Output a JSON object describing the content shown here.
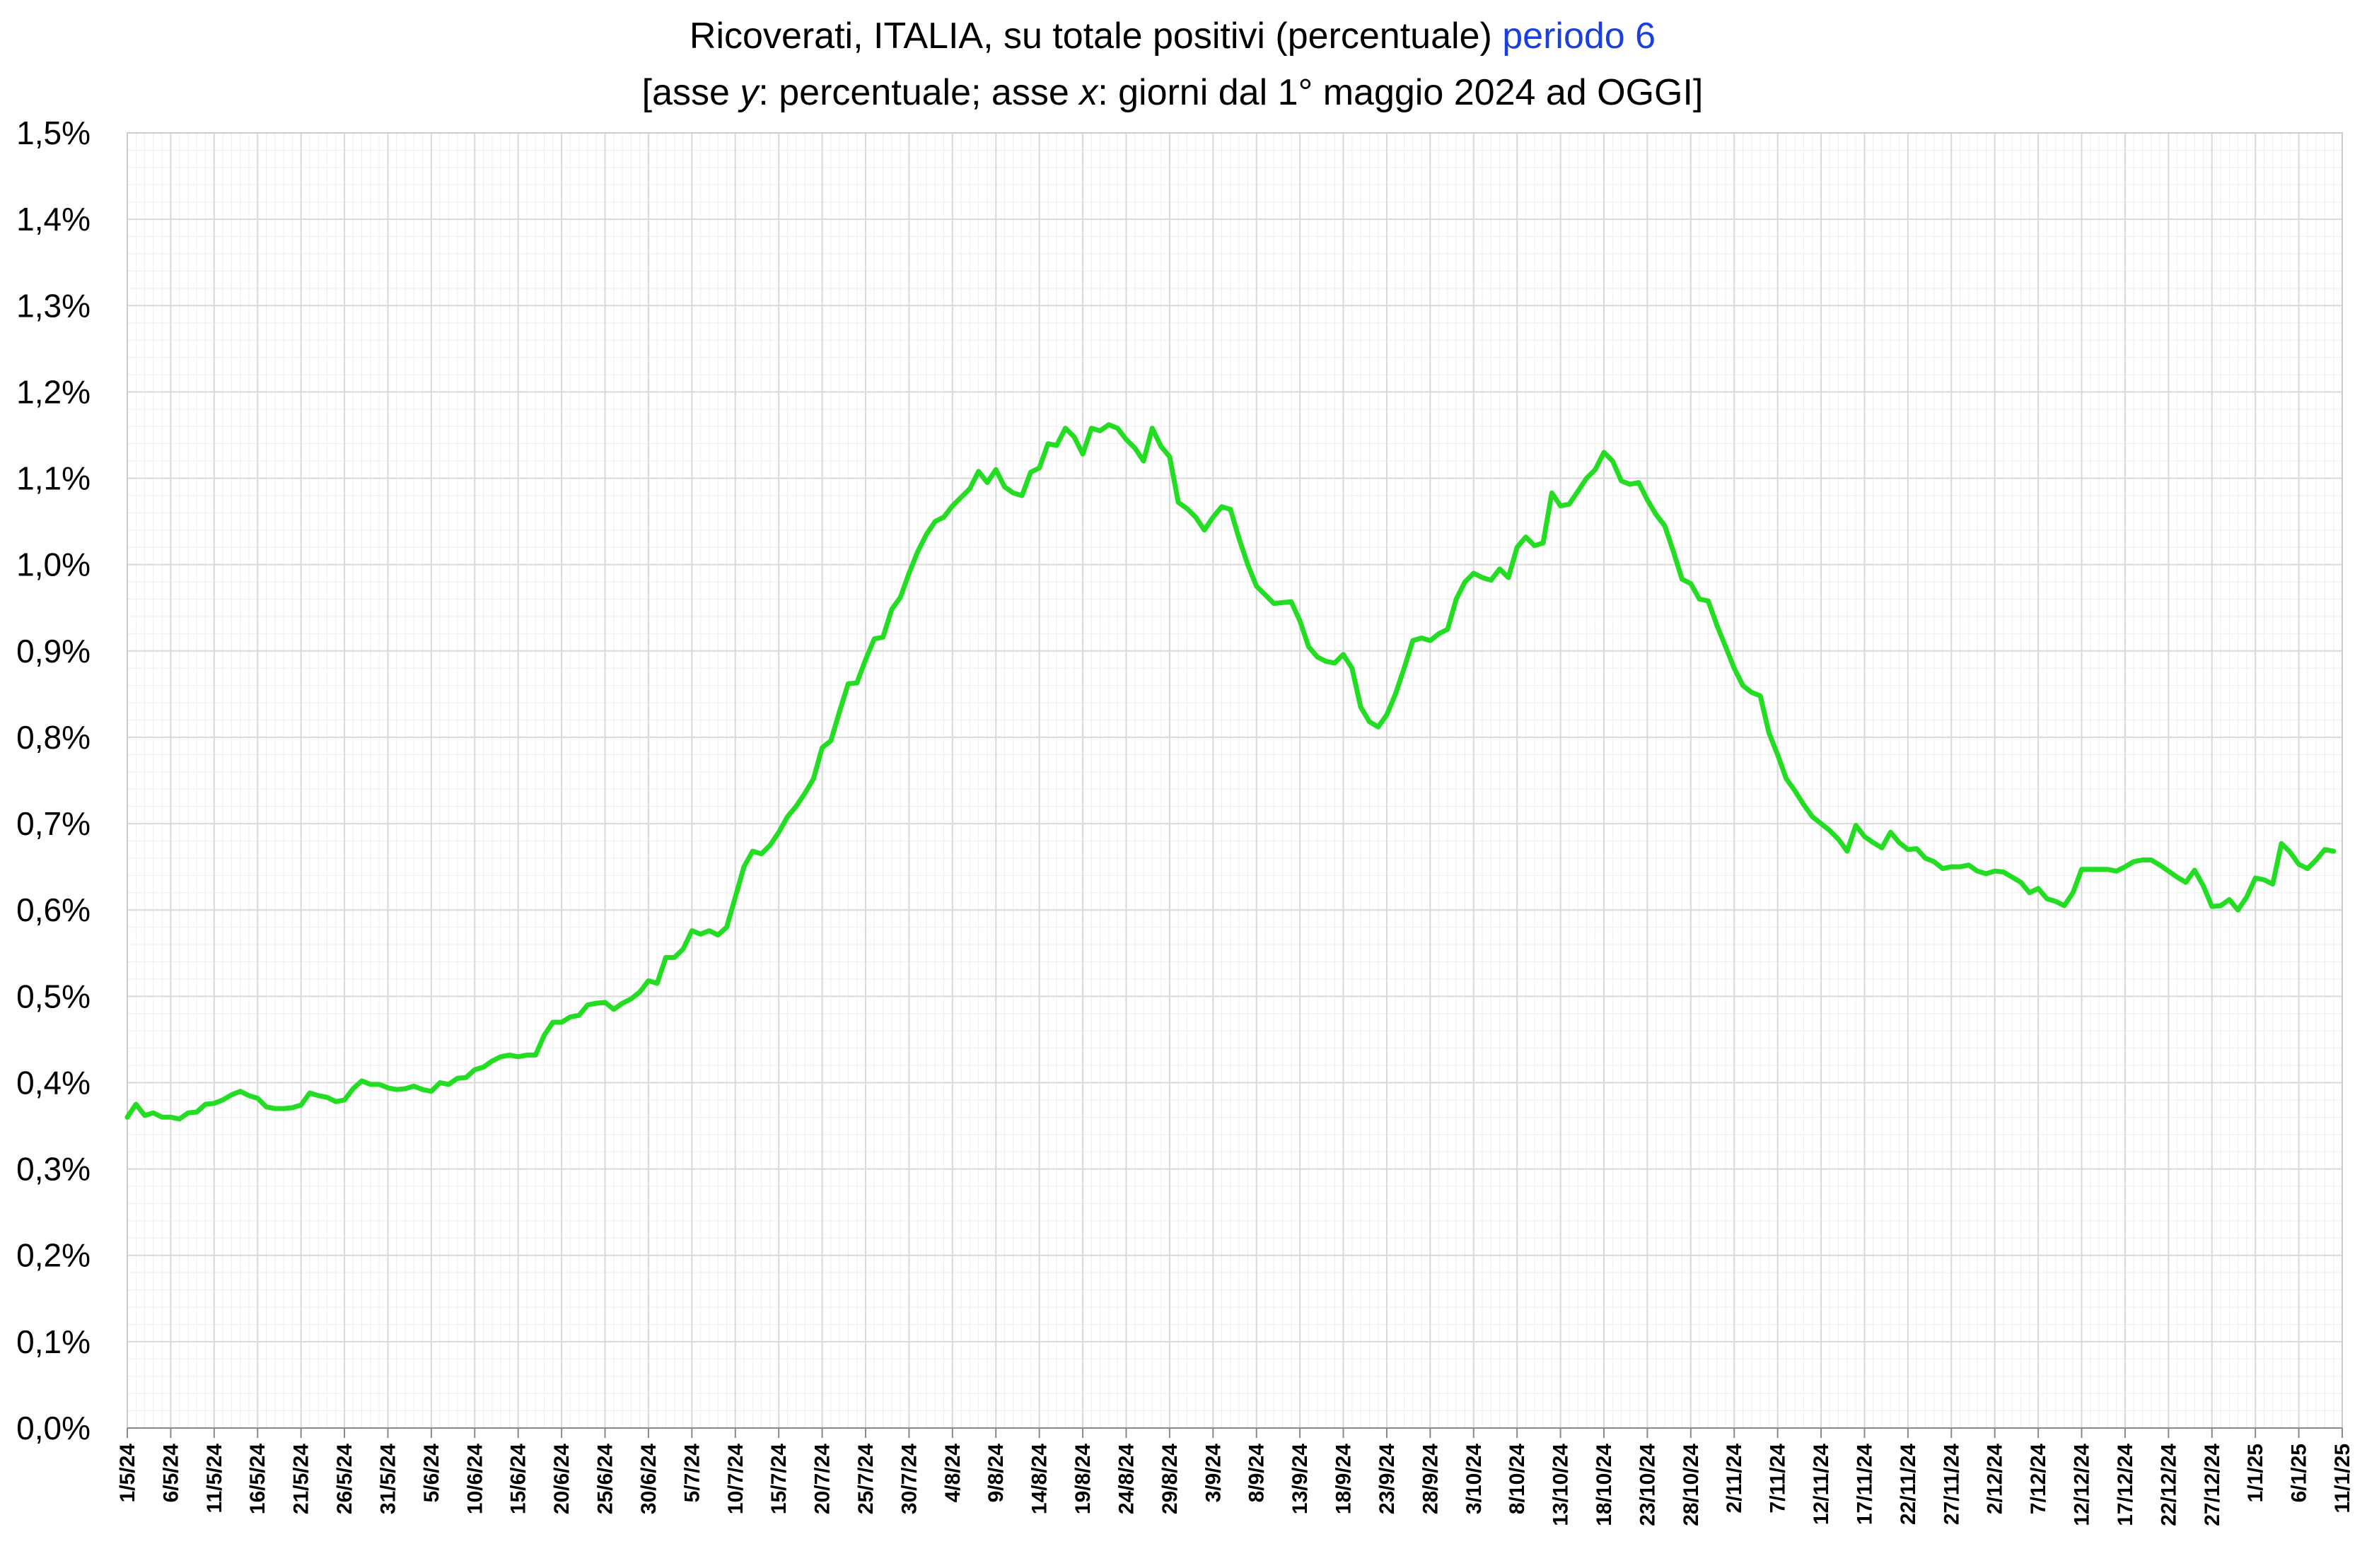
{
  "title": {
    "line1_main": "Ricoverati, ITALIA, su totale positivi (percentuale)",
    "line1_highlight": "periodo 6",
    "line2_open": "[asse ",
    "line2_y": "y",
    "line2_mid": ": percentuale; asse ",
    "line2_x": "x",
    "line2_rest": ": giorni dal 1° maggio 2024 ad OGGI]"
  },
  "colors": {
    "line": "#22dd22",
    "highlight": "#1a3fe0",
    "grid_major": "#d9d9d9",
    "grid_minor": "#eeeeee",
    "axis": "#888888"
  },
  "chart_data": {
    "type": "line",
    "ylim": [
      0,
      1.5
    ],
    "y_ticks": [
      "0,0%",
      "0,1%",
      "0,2%",
      "0,3%",
      "0,4%",
      "0,5%",
      "0,6%",
      "0,7%",
      "0,8%",
      "0,9%",
      "1,0%",
      "1,1%",
      "1,2%",
      "1,3%",
      "1,4%",
      "1,5%"
    ],
    "x_range": [
      "2024-05-01",
      "2025-01-11"
    ],
    "x_ticks": [
      "1/5/24",
      "6/5/24",
      "11/5/24",
      "16/5/24",
      "21/5/24",
      "26/5/24",
      "31/5/24",
      "5/6/24",
      "10/6/24",
      "15/6/24",
      "20/6/24",
      "25/6/24",
      "30/6/24",
      "5/7/24",
      "10/7/24",
      "15/7/24",
      "20/7/24",
      "25/7/24",
      "30/7/24",
      "4/8/24",
      "9/8/24",
      "14/8/24",
      "19/8/24",
      "24/8/24",
      "29/8/24",
      "3/9/24",
      "8/9/24",
      "13/9/24",
      "18/9/24",
      "23/9/24",
      "28/9/24",
      "3/10/24",
      "8/10/24",
      "13/10/24",
      "18/10/24",
      "23/10/24",
      "28/10/24",
      "2/11/24",
      "7/11/24",
      "12/11/24",
      "17/11/24",
      "22/11/24",
      "27/11/24",
      "2/12/24",
      "7/12/24",
      "12/12/24",
      "17/12/24",
      "22/12/24",
      "27/12/24",
      "1/1/25",
      "6/1/25",
      "11/1/25"
    ],
    "grid": true,
    "series": [
      {
        "points": [
          [
            "2024-05-01",
            0.36
          ],
          [
            "2024-05-02",
            0.375
          ],
          [
            "2024-05-03",
            0.362
          ],
          [
            "2024-05-04",
            0.365
          ],
          [
            "2024-05-05",
            0.36
          ],
          [
            "2024-05-06",
            0.36
          ],
          [
            "2024-05-07",
            0.358
          ],
          [
            "2024-05-08",
            0.365
          ],
          [
            "2024-05-09",
            0.366
          ],
          [
            "2024-05-10",
            0.375
          ],
          [
            "2024-05-11",
            0.376
          ],
          [
            "2024-05-12",
            0.38
          ],
          [
            "2024-05-13",
            0.386
          ],
          [
            "2024-05-14",
            0.39
          ],
          [
            "2024-05-15",
            0.385
          ],
          [
            "2024-05-16",
            0.382
          ],
          [
            "2024-05-17",
            0.372
          ],
          [
            "2024-05-18",
            0.37
          ],
          [
            "2024-05-19",
            0.37
          ],
          [
            "2024-05-20",
            0.371
          ],
          [
            "2024-05-21",
            0.374
          ],
          [
            "2024-05-22",
            0.388
          ],
          [
            "2024-05-23",
            0.385
          ],
          [
            "2024-05-24",
            0.383
          ],
          [
            "2024-05-25",
            0.378
          ],
          [
            "2024-05-26",
            0.38
          ],
          [
            "2024-05-27",
            0.393
          ],
          [
            "2024-05-28",
            0.402
          ],
          [
            "2024-05-29",
            0.398
          ],
          [
            "2024-05-30",
            0.398
          ],
          [
            "2024-05-31",
            0.394
          ],
          [
            "2024-06-01",
            0.392
          ],
          [
            "2024-06-02",
            0.393
          ],
          [
            "2024-06-03",
            0.396
          ],
          [
            "2024-06-04",
            0.392
          ],
          [
            "2024-06-05",
            0.39
          ],
          [
            "2024-06-06",
            0.4
          ],
          [
            "2024-06-07",
            0.398
          ],
          [
            "2024-06-08",
            0.405
          ],
          [
            "2024-06-09",
            0.406
          ],
          [
            "2024-06-10",
            0.415
          ],
          [
            "2024-06-11",
            0.418
          ],
          [
            "2024-06-12",
            0.425
          ],
          [
            "2024-06-13",
            0.43
          ],
          [
            "2024-06-14",
            0.432
          ],
          [
            "2024-06-15",
            0.43
          ],
          [
            "2024-06-16",
            0.432
          ],
          [
            "2024-06-17",
            0.432
          ],
          [
            "2024-06-18",
            0.455
          ],
          [
            "2024-06-19",
            0.47
          ],
          [
            "2024-06-20",
            0.47
          ],
          [
            "2024-06-21",
            0.476
          ],
          [
            "2024-06-22",
            0.478
          ],
          [
            "2024-06-23",
            0.49
          ],
          [
            "2024-06-24",
            0.492
          ],
          [
            "2024-06-25",
            0.493
          ],
          [
            "2024-06-26",
            0.485
          ],
          [
            "2024-06-27",
            0.492
          ],
          [
            "2024-06-28",
            0.497
          ],
          [
            "2024-06-29",
            0.505
          ],
          [
            "2024-06-30",
            0.518
          ],
          [
            "2024-07-01",
            0.515
          ],
          [
            "2024-07-02",
            0.545
          ],
          [
            "2024-07-03",
            0.545
          ],
          [
            "2024-07-04",
            0.555
          ],
          [
            "2024-07-05",
            0.576
          ],
          [
            "2024-07-06",
            0.572
          ],
          [
            "2024-07-07",
            0.576
          ],
          [
            "2024-07-08",
            0.571
          ],
          [
            "2024-07-09",
            0.58
          ],
          [
            "2024-07-10",
            0.615
          ],
          [
            "2024-07-11",
            0.65
          ],
          [
            "2024-07-12",
            0.668
          ],
          [
            "2024-07-13",
            0.665
          ],
          [
            "2024-07-14",
            0.675
          ],
          [
            "2024-07-15",
            0.69
          ],
          [
            "2024-07-16",
            0.708
          ],
          [
            "2024-07-17",
            0.72
          ],
          [
            "2024-07-18",
            0.735
          ],
          [
            "2024-07-19",
            0.752
          ],
          [
            "2024-07-20",
            0.788
          ],
          [
            "2024-07-21",
            0.796
          ],
          [
            "2024-07-22",
            0.83
          ],
          [
            "2024-07-23",
            0.862
          ],
          [
            "2024-07-24",
            0.863
          ],
          [
            "2024-07-25",
            0.89
          ],
          [
            "2024-07-26",
            0.914
          ],
          [
            "2024-07-27",
            0.916
          ],
          [
            "2024-07-28",
            0.948
          ],
          [
            "2024-07-29",
            0.962
          ],
          [
            "2024-07-30",
            0.99
          ],
          [
            "2024-07-31",
            1.015
          ],
          [
            "2024-08-01",
            1.035
          ],
          [
            "2024-08-02",
            1.05
          ],
          [
            "2024-08-03",
            1.055
          ],
          [
            "2024-08-04",
            1.068
          ],
          [
            "2024-08-05",
            1.078
          ],
          [
            "2024-08-06",
            1.088
          ],
          [
            "2024-08-07",
            1.108
          ],
          [
            "2024-08-08",
            1.095
          ],
          [
            "2024-08-09",
            1.11
          ],
          [
            "2024-08-10",
            1.09
          ],
          [
            "2024-08-11",
            1.083
          ],
          [
            "2024-08-12",
            1.08
          ],
          [
            "2024-08-13",
            1.107
          ],
          [
            "2024-08-14",
            1.112
          ],
          [
            "2024-08-15",
            1.14
          ],
          [
            "2024-08-16",
            1.138
          ],
          [
            "2024-08-17",
            1.158
          ],
          [
            "2024-08-18",
            1.148
          ],
          [
            "2024-08-19",
            1.128
          ],
          [
            "2024-08-20",
            1.158
          ],
          [
            "2024-08-21",
            1.155
          ],
          [
            "2024-08-22",
            1.162
          ],
          [
            "2024-08-23",
            1.158
          ],
          [
            "2024-08-24",
            1.145
          ],
          [
            "2024-08-25",
            1.135
          ],
          [
            "2024-08-26",
            1.12
          ],
          [
            "2024-08-27",
            1.158
          ],
          [
            "2024-08-28",
            1.137
          ],
          [
            "2024-08-29",
            1.125
          ],
          [
            "2024-08-30",
            1.072
          ],
          [
            "2024-08-31",
            1.065
          ],
          [
            "2024-09-01",
            1.055
          ],
          [
            "2024-09-02",
            1.04
          ],
          [
            "2024-09-03",
            1.055
          ],
          [
            "2024-09-04",
            1.067
          ],
          [
            "2024-09-05",
            1.064
          ],
          [
            "2024-09-06",
            1.03
          ],
          [
            "2024-09-07",
            1.0
          ],
          [
            "2024-09-08",
            0.975
          ],
          [
            "2024-09-09",
            0.965
          ],
          [
            "2024-09-10",
            0.955
          ],
          [
            "2024-09-11",
            0.956
          ],
          [
            "2024-09-12",
            0.957
          ],
          [
            "2024-09-13",
            0.935
          ],
          [
            "2024-09-14",
            0.905
          ],
          [
            "2024-09-15",
            0.893
          ],
          [
            "2024-09-16",
            0.888
          ],
          [
            "2024-09-17",
            0.886
          ],
          [
            "2024-09-18",
            0.896
          ],
          [
            "2024-09-19",
            0.88
          ],
          [
            "2024-09-20",
            0.835
          ],
          [
            "2024-09-21",
            0.818
          ],
          [
            "2024-09-22",
            0.812
          ],
          [
            "2024-09-23",
            0.826
          ],
          [
            "2024-09-24",
            0.85
          ],
          [
            "2024-09-25",
            0.88
          ],
          [
            "2024-09-26",
            0.912
          ],
          [
            "2024-09-27",
            0.915
          ],
          [
            "2024-09-28",
            0.912
          ],
          [
            "2024-09-29",
            0.92
          ],
          [
            "2024-09-30",
            0.925
          ],
          [
            "2024-10-01",
            0.96
          ],
          [
            "2024-10-02",
            0.98
          ],
          [
            "2024-10-03",
            0.99
          ],
          [
            "2024-10-04",
            0.985
          ],
          [
            "2024-10-05",
            0.982
          ],
          [
            "2024-10-06",
            0.995
          ],
          [
            "2024-10-07",
            0.985
          ],
          [
            "2024-10-08",
            1.02
          ],
          [
            "2024-10-09",
            1.032
          ],
          [
            "2024-10-10",
            1.022
          ],
          [
            "2024-10-11",
            1.025
          ],
          [
            "2024-10-12",
            1.083
          ],
          [
            "2024-10-13",
            1.068
          ],
          [
            "2024-10-14",
            1.07
          ],
          [
            "2024-10-15",
            1.085
          ],
          [
            "2024-10-16",
            1.1
          ],
          [
            "2024-10-17",
            1.11
          ],
          [
            "2024-10-18",
            1.13
          ],
          [
            "2024-10-19",
            1.12
          ],
          [
            "2024-10-20",
            1.097
          ],
          [
            "2024-10-21",
            1.093
          ],
          [
            "2024-10-22",
            1.095
          ],
          [
            "2024-10-23",
            1.075
          ],
          [
            "2024-10-24",
            1.058
          ],
          [
            "2024-10-25",
            1.045
          ],
          [
            "2024-10-26",
            1.015
          ],
          [
            "2024-10-27",
            0.983
          ],
          [
            "2024-10-28",
            0.978
          ],
          [
            "2024-10-29",
            0.96
          ],
          [
            "2024-10-30",
            0.958
          ],
          [
            "2024-10-31",
            0.93
          ],
          [
            "2024-11-01",
            0.905
          ],
          [
            "2024-11-02",
            0.88
          ],
          [
            "2024-11-03",
            0.86
          ],
          [
            "2024-11-04",
            0.852
          ],
          [
            "2024-11-05",
            0.848
          ],
          [
            "2024-11-06",
            0.805
          ],
          [
            "2024-11-07",
            0.78
          ],
          [
            "2024-11-08",
            0.752
          ],
          [
            "2024-11-09",
            0.738
          ],
          [
            "2024-11-10",
            0.722
          ],
          [
            "2024-11-11",
            0.708
          ],
          [
            "2024-11-12",
            0.7
          ],
          [
            "2024-11-13",
            0.692
          ],
          [
            "2024-11-14",
            0.682
          ],
          [
            "2024-11-15",
            0.668
          ],
          [
            "2024-11-16",
            0.698
          ],
          [
            "2024-11-17",
            0.685
          ],
          [
            "2024-11-18",
            0.678
          ],
          [
            "2024-11-19",
            0.672
          ],
          [
            "2024-11-20",
            0.69
          ],
          [
            "2024-11-21",
            0.678
          ],
          [
            "2024-11-22",
            0.67
          ],
          [
            "2024-11-23",
            0.671
          ],
          [
            "2024-11-24",
            0.66
          ],
          [
            "2024-11-25",
            0.656
          ],
          [
            "2024-11-26",
            0.648
          ],
          [
            "2024-11-27",
            0.65
          ],
          [
            "2024-11-28",
            0.65
          ],
          [
            "2024-11-29",
            0.652
          ],
          [
            "2024-11-30",
            0.645
          ],
          [
            "2024-12-01",
            0.642
          ],
          [
            "2024-12-02",
            0.645
          ],
          [
            "2024-12-03",
            0.644
          ],
          [
            "2024-12-04",
            0.638
          ],
          [
            "2024-12-05",
            0.632
          ],
          [
            "2024-12-06",
            0.62
          ],
          [
            "2024-12-07",
            0.625
          ],
          [
            "2024-12-08",
            0.613
          ],
          [
            "2024-12-09",
            0.61
          ],
          [
            "2024-12-10",
            0.605
          ],
          [
            "2024-12-11",
            0.62
          ],
          [
            "2024-12-12",
            0.647
          ],
          [
            "2024-12-13",
            0.647
          ],
          [
            "2024-12-14",
            0.647
          ],
          [
            "2024-12-15",
            0.647
          ],
          [
            "2024-12-16",
            0.645
          ],
          [
            "2024-12-17",
            0.65
          ],
          [
            "2024-12-18",
            0.656
          ],
          [
            "2024-12-19",
            0.658
          ],
          [
            "2024-12-20",
            0.658
          ],
          [
            "2024-12-21",
            0.652
          ],
          [
            "2024-12-22",
            0.645
          ],
          [
            "2024-12-23",
            0.638
          ],
          [
            "2024-12-24",
            0.632
          ],
          [
            "2024-12-25",
            0.646
          ],
          [
            "2024-12-26",
            0.628
          ],
          [
            "2024-12-27",
            0.604
          ],
          [
            "2024-12-28",
            0.605
          ],
          [
            "2024-12-29",
            0.612
          ],
          [
            "2024-12-30",
            0.6
          ],
          [
            "2024-12-31",
            0.615
          ],
          [
            "2025-01-01",
            0.637
          ],
          [
            "2025-01-02",
            0.635
          ],
          [
            "2025-01-03",
            0.63
          ],
          [
            "2025-01-04",
            0.677
          ],
          [
            "2025-01-05",
            0.667
          ],
          [
            "2025-01-06",
            0.653
          ],
          [
            "2025-01-07",
            0.648
          ],
          [
            "2025-01-08",
            0.658
          ],
          [
            "2025-01-09",
            0.67
          ],
          [
            "2025-01-10",
            0.668
          ]
        ]
      }
    ]
  }
}
